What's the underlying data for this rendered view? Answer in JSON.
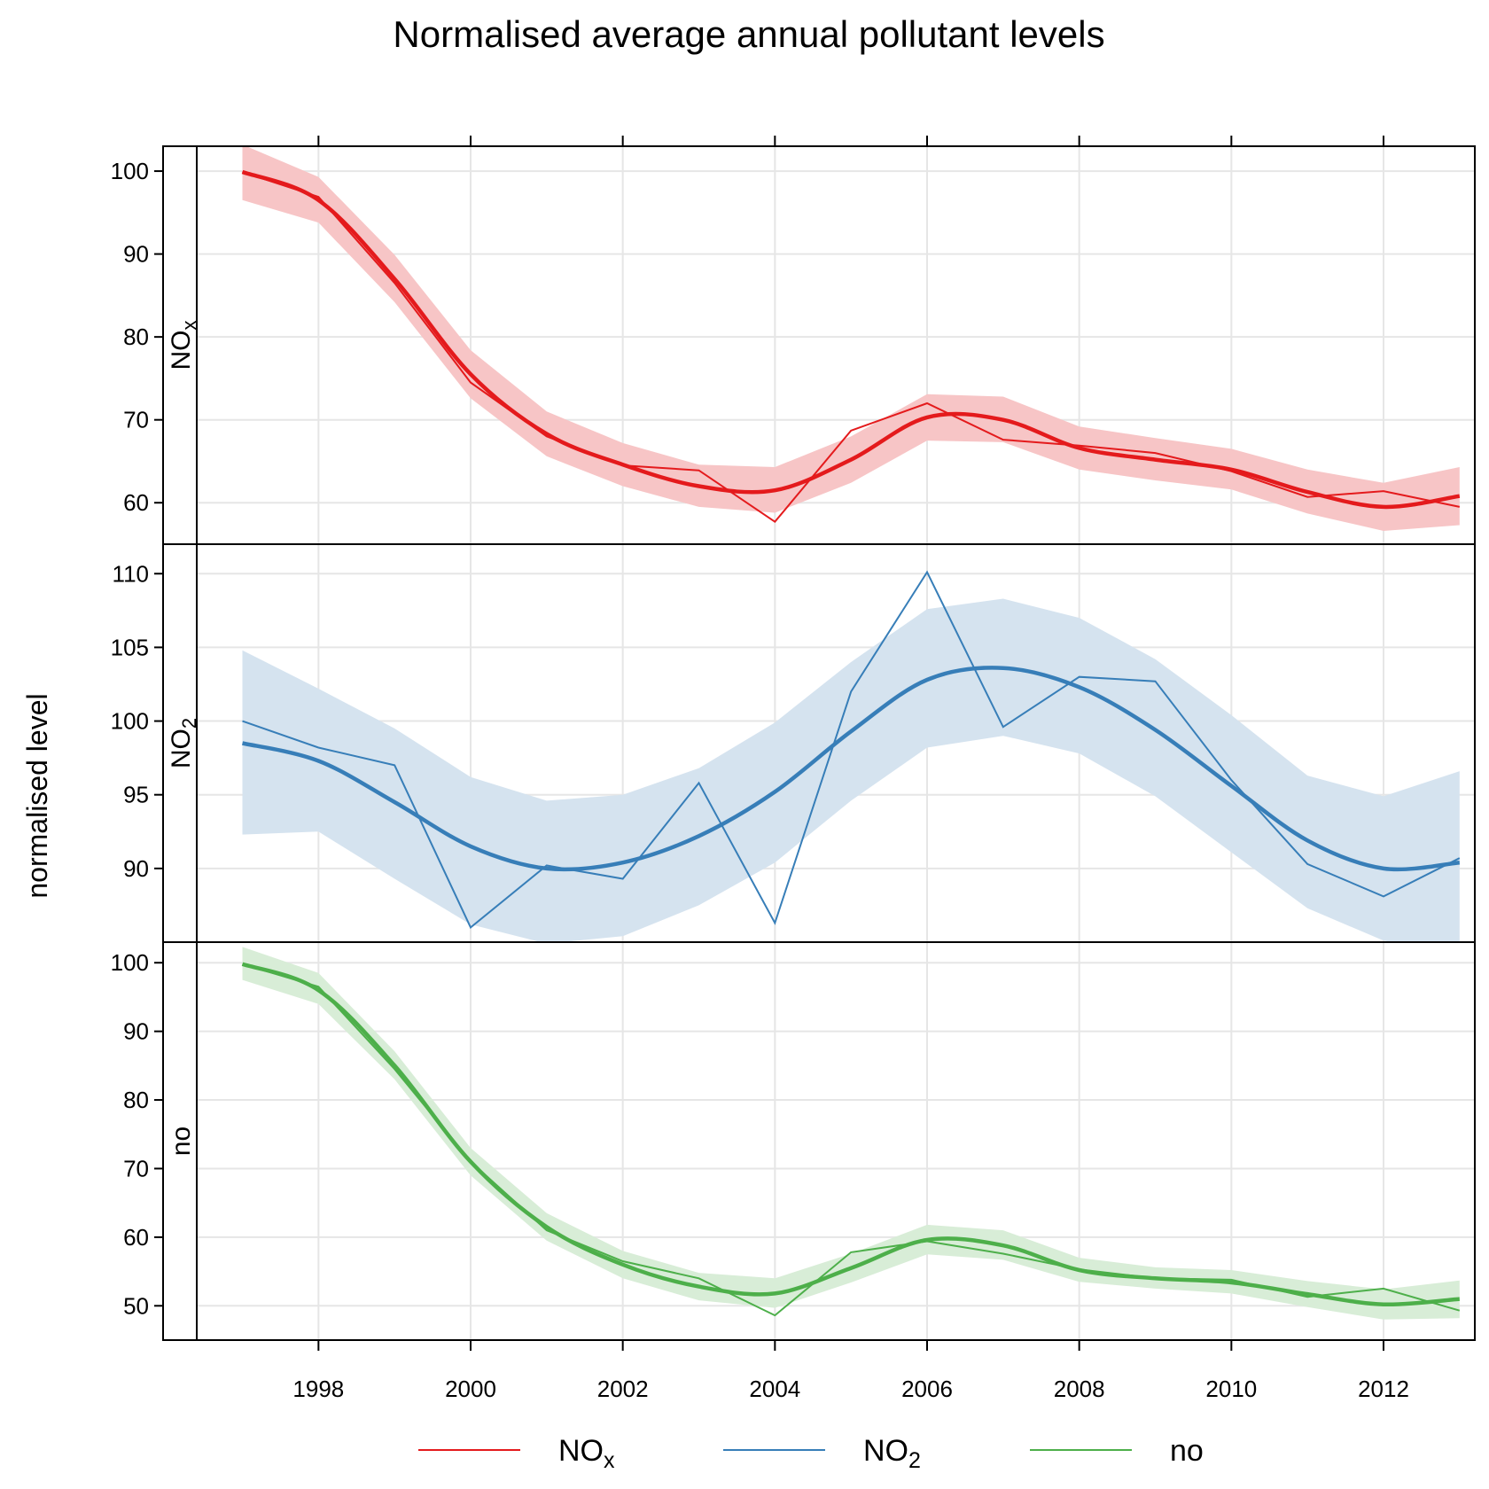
{
  "chart_data": {
    "type": "line",
    "title": "Normalised average annual pollutant levels",
    "ylabel": "normalised level",
    "xlabel": "",
    "x_ticks": [
      "1998",
      "2000",
      "2002",
      "2004",
      "2006",
      "2008",
      "2010",
      "2012"
    ],
    "xlim": [
      1996.4,
      2013.2
    ],
    "grid": true,
    "legend_position": "bottom",
    "legend": [
      {
        "label": "NOx",
        "base": "NO",
        "sub": "x",
        "color": "#e41a1c"
      },
      {
        "label": "NO2",
        "base": "NO",
        "sub": "2",
        "color": "#377eb8"
      },
      {
        "label": "no",
        "base": "no",
        "sub": "",
        "color": "#4daf4a"
      }
    ],
    "panels": [
      {
        "name": "NOx",
        "strip_base": "NO",
        "strip_sub": "x",
        "color": "#e41a1c",
        "band_color": "#f7c5c6",
        "ylim": [
          55,
          103
        ],
        "yticks": [
          "60",
          "70",
          "80",
          "90",
          "100"
        ],
        "x": [
          1997,
          1998,
          1999,
          2000,
          2001,
          2002,
          2003,
          2004,
          2005,
          2006,
          2007,
          2008,
          2009,
          2010,
          2011,
          2012,
          2013
        ],
        "values": [
          99.9,
          96.9,
          86.5,
          74.5,
          68.0,
          64.5,
          63.9,
          57.7,
          68.7,
          72.0,
          67.6,
          66.9,
          66.0,
          63.8,
          60.7,
          61.4,
          59.5
        ],
        "smooth": [
          99.9,
          96.5,
          87.0,
          75.5,
          68.3,
          64.6,
          62.0,
          61.5,
          65.2,
          70.3,
          70.0,
          66.6,
          65.2,
          64.0,
          61.3,
          59.5,
          60.8
        ],
        "lower": [
          96.5,
          93.8,
          84.2,
          72.6,
          65.6,
          62.0,
          59.5,
          58.8,
          62.4,
          67.5,
          67.3,
          64.0,
          62.7,
          61.6,
          58.7,
          56.6,
          57.3
        ],
        "upper": [
          103.2,
          99.3,
          89.9,
          78.4,
          71.0,
          67.2,
          64.6,
          64.3,
          68.0,
          73.1,
          72.8,
          69.2,
          67.8,
          66.5,
          64.0,
          62.4,
          64.3
        ]
      },
      {
        "name": "NO2",
        "strip_base": "NO",
        "strip_sub": "2",
        "color": "#377eb8",
        "band_color": "#d5e3ef",
        "ylim": [
          85,
          112
        ],
        "yticks": [
          "90",
          "95",
          "100",
          "105",
          "110"
        ],
        "x": [
          1997,
          1998,
          1999,
          2000,
          2001,
          2002,
          2003,
          2004,
          2005,
          2006,
          2007,
          2008,
          2009,
          2010,
          2011,
          2012,
          2013
        ],
        "values": [
          100.0,
          98.2,
          97.0,
          86.0,
          90.2,
          89.3,
          95.8,
          86.3,
          102.0,
          110.1,
          99.6,
          103.0,
          102.7,
          96.0,
          90.3,
          88.1,
          90.7
        ],
        "smooth": [
          98.5,
          97.3,
          94.5,
          91.5,
          90.0,
          90.4,
          92.2,
          95.2,
          99.3,
          102.8,
          103.6,
          102.3,
          99.4,
          95.6,
          91.9,
          90.0,
          90.4
        ],
        "lower": [
          92.3,
          92.5,
          89.3,
          86.2,
          84.9,
          85.4,
          87.5,
          90.4,
          94.6,
          98.2,
          99.0,
          97.8,
          94.9,
          91.1,
          87.3,
          85.1,
          84.2
        ],
        "upper": [
          104.8,
          102.2,
          99.5,
          96.2,
          94.6,
          95.0,
          96.8,
          99.9,
          104.0,
          107.6,
          108.3,
          107.0,
          104.2,
          100.4,
          96.3,
          94.9,
          96.6
        ]
      },
      {
        "name": "no",
        "strip_base": "no",
        "strip_sub": "",
        "color": "#4daf4a",
        "band_color": "#d8edd7",
        "ylim": [
          45,
          103
        ],
        "yticks": [
          "50",
          "60",
          "70",
          "80",
          "90",
          "100"
        ],
        "x": [
          1997,
          1998,
          1999,
          2000,
          2001,
          2002,
          2003,
          2004,
          2005,
          2006,
          2007,
          2008,
          2009,
          2010,
          2011,
          2012,
          2013
        ],
        "values": [
          99.8,
          96.5,
          84.5,
          71.0,
          61.0,
          56.5,
          54.0,
          48.6,
          57.8,
          59.4,
          57.6,
          55.3,
          54.0,
          53.8,
          51.3,
          52.5,
          49.3
        ],
        "smooth": [
          99.8,
          96.0,
          85.0,
          71.0,
          61.5,
          56.0,
          52.8,
          51.8,
          55.5,
          59.6,
          58.8,
          55.2,
          54.0,
          53.4,
          51.7,
          50.2,
          51.0
        ],
        "lower": [
          97.5,
          94.0,
          83.0,
          69.0,
          59.5,
          54.0,
          50.8,
          49.7,
          53.4,
          57.5,
          56.7,
          53.5,
          52.5,
          51.8,
          49.8,
          48.0,
          48.2
        ],
        "upper": [
          102.3,
          98.5,
          87.1,
          73.0,
          63.5,
          58.0,
          54.8,
          54.0,
          57.6,
          61.8,
          61.0,
          57.0,
          55.6,
          55.2,
          53.6,
          52.4,
          53.7
        ]
      }
    ]
  }
}
